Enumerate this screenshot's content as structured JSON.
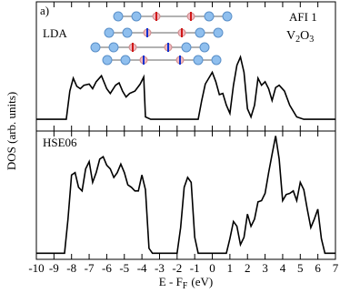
{
  "chart_data": [
    {
      "type": "line",
      "label": "LDA",
      "label_color": "#e8141b",
      "panel_tag": "a)",
      "phase": "AFI 1",
      "formula": [
        "V",
        "2",
        "O",
        "3"
      ],
      "xlim": [
        -10,
        7
      ],
      "ylim": [
        -0.1,
        1
      ],
      "color": "#000000",
      "x": [
        -10,
        -8.3,
        -8.1,
        -7.9,
        -7.7,
        -7.5,
        -7.3,
        -7,
        -6.8,
        -6.6,
        -6.3,
        -6,
        -5.8,
        -5.5,
        -5.3,
        -5.1,
        -4.9,
        -4.7,
        -4.4,
        -4.1,
        -3.9,
        -3.8,
        -3.5,
        -0.8,
        -0.6,
        -0.4,
        -0.2,
        0,
        0.2,
        0.4,
        0.6,
        0.8,
        1,
        1.2,
        1.4,
        1.6,
        1.8,
        2,
        2.2,
        2.4,
        2.6,
        2.8,
        3,
        3.2,
        3.4,
        3.6,
        3.8,
        4.1,
        4.4,
        4.8,
        5.2,
        7
      ],
      "values": [
        0,
        0,
        0.24,
        0.35,
        0.28,
        0.26,
        0.29,
        0.3,
        0.26,
        0.32,
        0.37,
        0.26,
        0.22,
        0.29,
        0.31,
        0.24,
        0.19,
        0.22,
        0.24,
        0.3,
        0.36,
        0.02,
        0,
        0,
        0.16,
        0.3,
        0.35,
        0.4,
        0.32,
        0.21,
        0.22,
        0.12,
        0.05,
        0.29,
        0.46,
        0.53,
        0.4,
        0.09,
        0.02,
        0.12,
        0.35,
        0.29,
        0.32,
        0.26,
        0.16,
        0.27,
        0.29,
        0.24,
        0.12,
        0.02,
        0,
        0
      ]
    },
    {
      "type": "line",
      "label": "HSE06",
      "label_color": "#e8141b",
      "xlabel": [
        "E - F",
        "F",
        "(eV)"
      ],
      "ylabel": "DOS (arb. units)",
      "xlim": [
        -10,
        7
      ],
      "ylim": [
        -0.05,
        1
      ],
      "color": "#000000",
      "xticks": [
        -10,
        -9,
        -8,
        -7,
        -6,
        -5,
        -4,
        -3,
        -2,
        -1,
        0,
        1,
        2,
        3,
        4,
        5,
        6,
        7
      ],
      "x": [
        -10,
        -8.4,
        -8.2,
        -8,
        -7.8,
        -7.6,
        -7.4,
        -7.2,
        -7,
        -6.8,
        -6.6,
        -6.4,
        -6.2,
        -6,
        -5.8,
        -5.6,
        -5.4,
        -5.2,
        -5,
        -4.8,
        -4.6,
        -4.4,
        -4.2,
        -4,
        -3.8,
        -3.6,
        -3.4,
        -2,
        -1.8,
        -1.6,
        -1.4,
        -1.2,
        -1,
        -0.8,
        0.8,
        1,
        1.2,
        1.4,
        1.6,
        1.8,
        2,
        2.2,
        2.4,
        2.6,
        2.8,
        3,
        3.2,
        3.4,
        3.6,
        3.8,
        4,
        4.2,
        4.4,
        4.6,
        4.8,
        5,
        5.2,
        5.4,
        5.6,
        5.8,
        6,
        6.2,
        6.4,
        7
      ],
      "values": [
        0,
        0,
        0.28,
        0.64,
        0.66,
        0.54,
        0.51,
        0.69,
        0.75,
        0.58,
        0.66,
        0.77,
        0.79,
        0.72,
        0.69,
        0.62,
        0.66,
        0.73,
        0.66,
        0.56,
        0.54,
        0.51,
        0.51,
        0.64,
        0.52,
        0.04,
        0,
        0,
        0.21,
        0.54,
        0.62,
        0.58,
        0.13,
        0,
        0,
        0.12,
        0.26,
        0.22,
        0.07,
        0.13,
        0.32,
        0.22,
        0.28,
        0.42,
        0.43,
        0.49,
        0.66,
        0.81,
        0.96,
        0.77,
        0.43,
        0.48,
        0.49,
        0.51,
        0.43,
        0.58,
        0.52,
        0.36,
        0.21,
        0.28,
        0.36,
        0.12,
        0,
        0
      ]
    }
  ]
}
